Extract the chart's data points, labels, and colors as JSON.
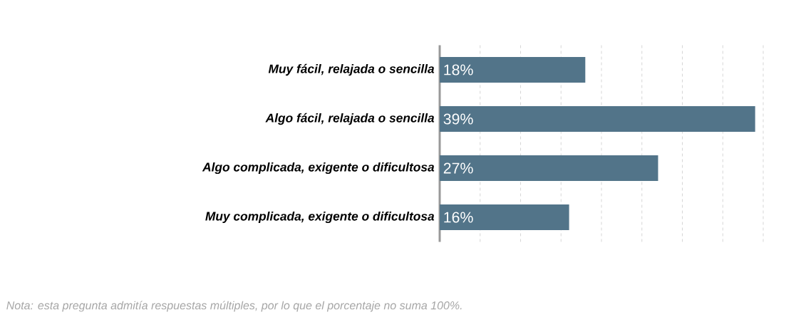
{
  "chart_data": {
    "type": "bar",
    "orientation": "horizontal",
    "categories": [
      "Muy fácil, relajada o sencilla",
      "Algo fácil, relajada o sencilla",
      "Algo complicada, exigente o dificultosa",
      "Muy complicada, exigente o dificultosa"
    ],
    "values": [
      18,
      39,
      27,
      16
    ],
    "value_labels": [
      "18%",
      "39%",
      "27%",
      "16%"
    ],
    "color": "#527489",
    "xlim": [
      0,
      40
    ],
    "grid": "x",
    "annotations": [
      "Nota: esta pregunta admitía respuestas múltiples, por lo que el porcentaje no suma 100%."
    ]
  }
}
